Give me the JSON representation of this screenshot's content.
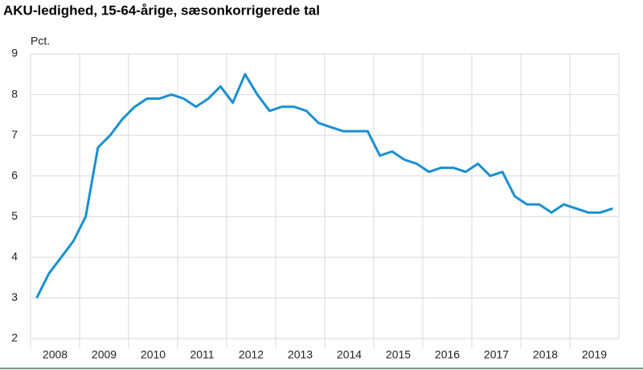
{
  "chart_data": {
    "type": "line",
    "title": "AKU-ledighed, 15-64-årige, sæsonkorrigerede tal",
    "y_label": "Pct.",
    "categories": [
      "2008",
      null,
      null,
      null,
      "2009",
      null,
      null,
      null,
      "2010",
      null,
      null,
      null,
      "2011",
      null,
      null,
      null,
      "2012",
      null,
      null,
      null,
      "2013",
      null,
      null,
      null,
      "2014",
      null,
      null,
      null,
      "2015",
      null,
      null,
      null,
      "2016",
      null,
      null,
      null,
      "2017",
      null,
      null,
      null,
      "2018",
      null,
      null,
      null,
      "2019",
      null,
      null,
      null
    ],
    "values": [
      3.0,
      3.6,
      4.0,
      4.4,
      5.0,
      6.7,
      7.0,
      7.4,
      7.7,
      7.9,
      7.9,
      8.0,
      7.9,
      7.7,
      7.9,
      8.2,
      7.8,
      8.5,
      8.0,
      7.6,
      7.7,
      7.7,
      7.6,
      7.3,
      7.2,
      7.1,
      7.1,
      7.1,
      6.5,
      6.6,
      6.4,
      6.3,
      6.1,
      6.2,
      6.2,
      6.1,
      6.3,
      6.0,
      6.1,
      5.5,
      5.3,
      5.3,
      5.1,
      5.3,
      5.2,
      5.1,
      5.1,
      5.2
    ],
    "color": "#1a8fd1",
    "ylim": [
      2,
      9
    ],
    "yticks": [
      2,
      3,
      4,
      5,
      6,
      7,
      8,
      9
    ],
    "grid": true
  }
}
